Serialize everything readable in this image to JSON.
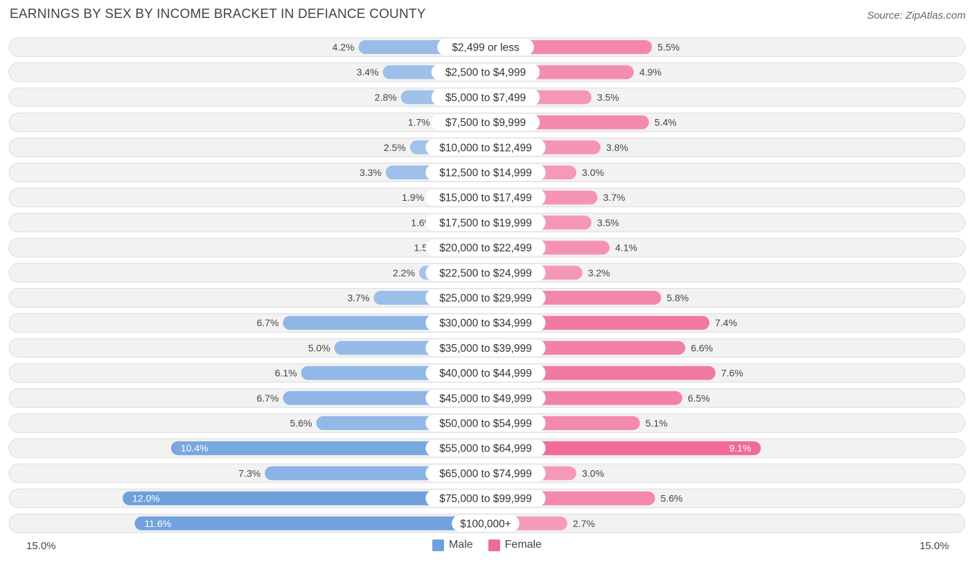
{
  "header": {
    "title": "EARNINGS BY SEX BY INCOME BRACKET IN DEFIANCE COUNTY",
    "source": "Source: ZipAtlas.com"
  },
  "axis": {
    "left_label": "15.0%",
    "right_label": "15.0%"
  },
  "legend": {
    "male": "Male",
    "female": "Female"
  },
  "colors": {
    "male": "#6fa0dc",
    "male_light": "#a9c7ec",
    "female": "#f06b96",
    "female_light": "#f7a8c0",
    "row_bg": "#f2f2f2",
    "row_border": "#dcdcdc"
  },
  "chart_data": {
    "type": "bar",
    "orientation": "horizontal-diverging",
    "title": "EARNINGS BY SEX BY INCOME BRACKET IN DEFIANCE COUNTY",
    "xlim": [
      -15,
      15
    ],
    "categories": [
      "$2,499 or less",
      "$2,500 to $4,999",
      "$5,000 to $7,499",
      "$7,500 to $9,999",
      "$10,000 to $12,499",
      "$12,500 to $14,999",
      "$15,000 to $17,499",
      "$17,500 to $19,999",
      "$20,000 to $22,499",
      "$22,500 to $24,999",
      "$25,000 to $29,999",
      "$30,000 to $34,999",
      "$35,000 to $39,999",
      "$40,000 to $44,999",
      "$45,000 to $49,999",
      "$50,000 to $54,999",
      "$55,000 to $64,999",
      "$65,000 to $74,999",
      "$75,000 to $99,999",
      "$100,000+"
    ],
    "series": [
      {
        "name": "Male",
        "values": [
          4.2,
          3.4,
          2.8,
          1.7,
          2.5,
          3.3,
          1.9,
          1.6,
          1.5,
          2.2,
          3.7,
          6.7,
          5.0,
          6.1,
          6.7,
          5.6,
          10.4,
          7.3,
          12.0,
          11.6
        ],
        "labels": [
          "4.2%",
          "3.4%",
          "2.8%",
          "1.7%",
          "2.5%",
          "3.3%",
          "1.9%",
          "1.6%",
          "1.5%",
          "2.2%",
          "3.7%",
          "6.7%",
          "5.0%",
          "6.1%",
          "6.7%",
          "5.6%",
          "10.4%",
          "7.3%",
          "12.0%",
          "11.6%"
        ]
      },
      {
        "name": "Female",
        "values": [
          5.5,
          4.9,
          3.5,
          5.4,
          3.8,
          3.0,
          3.7,
          3.5,
          4.1,
          3.2,
          5.8,
          7.4,
          6.6,
          7.6,
          6.5,
          5.1,
          9.1,
          3.0,
          5.6,
          2.7
        ],
        "labels": [
          "5.5%",
          "4.9%",
          "3.5%",
          "5.4%",
          "3.8%",
          "3.0%",
          "3.7%",
          "3.5%",
          "4.1%",
          "3.2%",
          "5.8%",
          "7.4%",
          "6.6%",
          "7.6%",
          "6.5%",
          "5.1%",
          "9.1%",
          "3.0%",
          "5.6%",
          "2.7%"
        ]
      }
    ]
  }
}
